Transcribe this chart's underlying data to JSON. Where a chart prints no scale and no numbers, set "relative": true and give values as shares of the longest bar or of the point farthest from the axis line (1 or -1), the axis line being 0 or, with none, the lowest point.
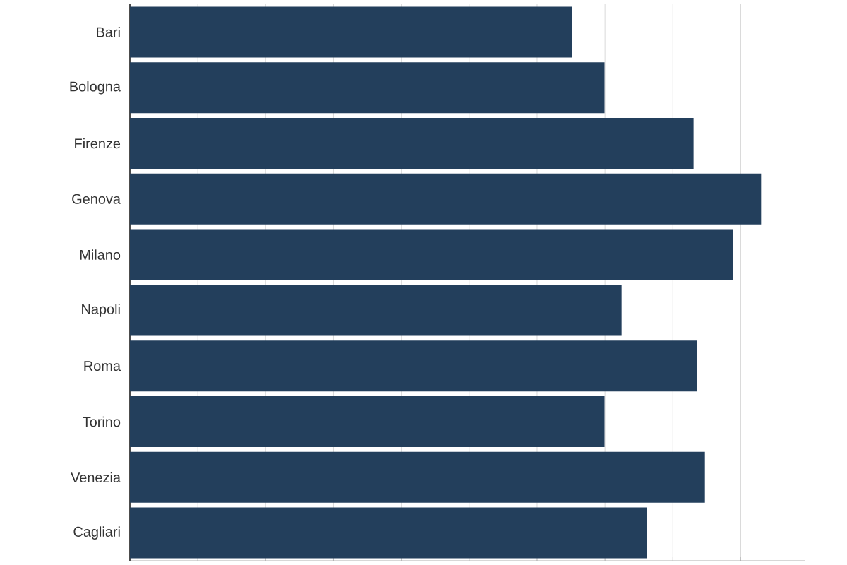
{
  "chart_data": {
    "type": "bar",
    "orientation": "horizontal",
    "relative": true,
    "grid": "x",
    "color": "#233f5c",
    "categories": [
      "Bari",
      "Bologna",
      "Firenze",
      "Genova",
      "Milano",
      "Napoli",
      "Roma",
      "Torino",
      "Venezia",
      "Cagliari"
    ],
    "values": [
      0.7,
      0.752,
      0.893,
      1,
      0.955,
      0.779,
      0.899,
      0.752,
      0.911,
      0.819
    ]
  }
}
